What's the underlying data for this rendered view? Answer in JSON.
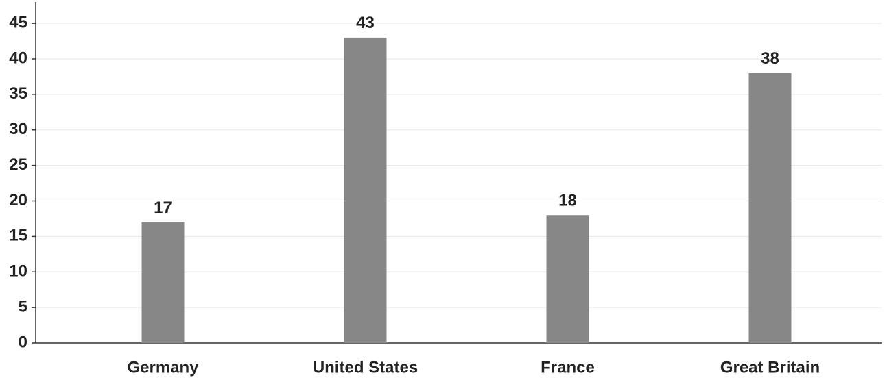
{
  "chart_data": {
    "type": "bar",
    "categories": [
      "Germany",
      "United States",
      "France",
      "Great Britain"
    ],
    "values": [
      17,
      43,
      18,
      38
    ],
    "color": "#878787",
    "ylim": [
      0,
      48
    ],
    "yticks": [
      0,
      5,
      10,
      15,
      20,
      25,
      30,
      35,
      40,
      45
    ],
    "grid": true
  }
}
